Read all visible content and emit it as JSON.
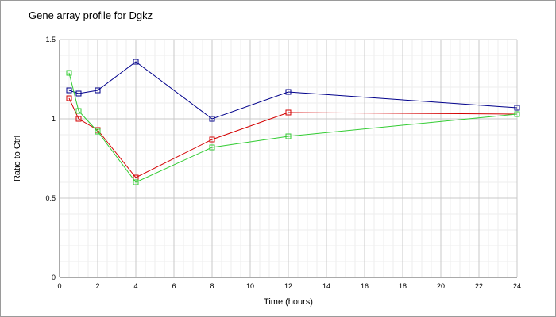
{
  "chart_data": {
    "type": "line",
    "title": "Gene array profile for Dgkz",
    "xlabel": "Time (hours)",
    "ylabel": "Ratio to Ctrl",
    "xlim": [
      0,
      24
    ],
    "ylim": [
      0,
      1.5
    ],
    "x_ticks": [
      0,
      2,
      4,
      6,
      8,
      10,
      12,
      14,
      16,
      18,
      20,
      22,
      24
    ],
    "y_ticks": [
      0,
      0.5,
      1,
      1.5
    ],
    "y_tick_labels": [
      "0",
      "0.5",
      "1",
      "1.5"
    ],
    "grid": true,
    "marker": "square",
    "series": [
      {
        "color": "#00008b",
        "x": [
          0.5,
          1,
          2,
          4,
          8,
          12,
          24
        ],
        "values": [
          1.18,
          1.16,
          1.18,
          1.36,
          1.0,
          1.17,
          1.07
        ]
      },
      {
        "color": "#d40000",
        "x": [
          0.5,
          1,
          2,
          4,
          8,
          12,
          24
        ],
        "values": [
          1.13,
          1.0,
          0.93,
          0.63,
          0.87,
          1.04,
          1.03
        ]
      },
      {
        "color": "#33cc33",
        "x": [
          0.5,
          1,
          2,
          4,
          8,
          12,
          24
        ],
        "values": [
          1.29,
          1.05,
          0.92,
          0.6,
          0.82,
          0.89,
          1.03
        ]
      }
    ]
  }
}
